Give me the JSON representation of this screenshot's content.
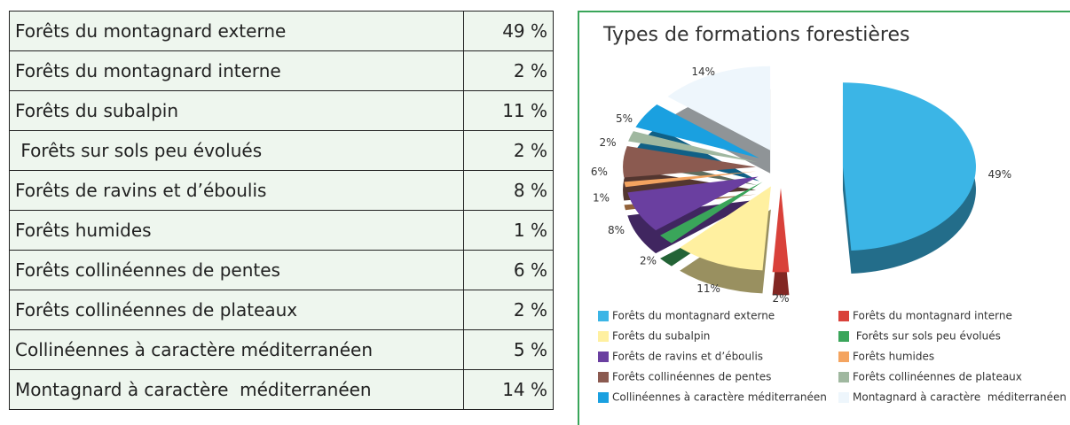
{
  "table": {
    "rows": [
      [
        "Forêts du montagnard externe",
        "49 %"
      ],
      [
        "Forêts du montagnard interne",
        "2 %"
      ],
      [
        "Forêts du subalpin",
        "11 %"
      ],
      [
        " Forêts sur sols peu évolués",
        "2 %"
      ],
      [
        "Forêts de ravins et d’éboulis",
        "8 %"
      ],
      [
        "Forêts humides",
        "1 %"
      ],
      [
        "Forêts collinéennes de pentes",
        "6 %"
      ],
      [
        "Forêts collinéennes de plateaux",
        "2 %"
      ],
      [
        "Collinéennes à caractère méditerranéen",
        "5 %"
      ],
      [
        "Montagnard à caractère  méditerranéen",
        "14 %"
      ]
    ]
  },
  "chart_data": {
    "type": "pie",
    "title": "Types de formations forestières",
    "series": [
      {
        "name": "Forêts du montagnard externe",
        "color": "#3bb5e6",
        "values": [
          49
        ],
        "value_labels": [
          "49%"
        ]
      },
      {
        "name": "Forêts du montagnard interne",
        "color": "#d9413a",
        "values": [
          2
        ],
        "value_labels": [
          "2%"
        ]
      },
      {
        "name": "Forêts du subalpin",
        "color": "#fff0a0",
        "values": [
          11
        ],
        "value_labels": [
          "11%"
        ]
      },
      {
        "name": " Forêts sur sols peu évolués",
        "color": "#3aa55a",
        "values": [
          2
        ],
        "value_labels": [
          "2%"
        ]
      },
      {
        "name": "Forêts de ravins et d’éboulis",
        "color": "#6a3fa0",
        "values": [
          8
        ],
        "value_labels": [
          "8%"
        ]
      },
      {
        "name": "Forêts humides",
        "color": "#f4a460",
        "values": [
          1
        ],
        "value_labels": [
          "1%"
        ]
      },
      {
        "name": "Forêts collinéennes de pentes",
        "color": "#8b5a50",
        "values": [
          6
        ],
        "value_labels": [
          "6%"
        ]
      },
      {
        "name": "Forêts collinéennes de plateaux",
        "color": "#a0b8a0",
        "values": [
          2
        ],
        "value_labels": [
          "2%"
        ]
      },
      {
        "name": "Collinéennes à caractère méditerranéen",
        "color": "#1aa0e0",
        "values": [
          5
        ],
        "value_labels": [
          "5%"
        ]
      },
      {
        "name": "Montagnard à caractère  méditerranéen",
        "color": "#eef6fc",
        "values": [
          14
        ],
        "value_labels": [
          "14%"
        ]
      }
    ]
  }
}
